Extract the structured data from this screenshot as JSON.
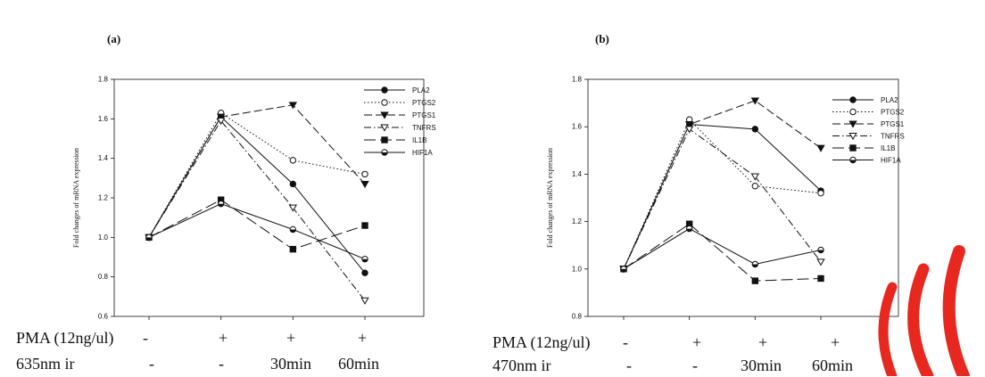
{
  "panels": [
    {
      "label": "(a)",
      "condition_rows": [
        {
          "label": "PMA (12ng/ul)",
          "cells": [
            "-",
            "+",
            "+",
            "+"
          ]
        },
        {
          "label": "635nm ir",
          "cells": [
            "-",
            "-",
            "30min",
            "60min"
          ]
        }
      ]
    },
    {
      "label": "(b)",
      "condition_rows": [
        {
          "label": "PMA (12ng/ul)",
          "cells": [
            "-",
            "+",
            "+",
            "+"
          ]
        },
        {
          "label": "470nm ir",
          "cells": [
            "-",
            "-",
            "30min",
            "60min"
          ]
        }
      ]
    }
  ],
  "chart_data": [
    {
      "type": "line",
      "panel": "(a)",
      "xlabel": "",
      "ylabel": "Fold changes of mRNA expression",
      "categories": [
        "1",
        "2",
        "3",
        "4"
      ],
      "ylim": [
        0.6,
        1.8
      ],
      "yticks": [
        "0.6",
        "0.8",
        "1.0",
        "1.2",
        "1.4",
        "1.6",
        "1.8"
      ],
      "grid": false,
      "legend_position": "top-right",
      "series": [
        {
          "name": "PLA2",
          "values": [
            1.0,
            1.61,
            1.27,
            0.82
          ],
          "marker": "circle-filled",
          "dash": "solid"
        },
        {
          "name": "PTGS2",
          "values": [
            1.0,
            1.63,
            1.39,
            1.32
          ],
          "marker": "circle-open",
          "dash": "dotted"
        },
        {
          "name": "PTGS1",
          "values": [
            1.0,
            1.61,
            1.67,
            1.27
          ],
          "marker": "triangle-filled",
          "dash": "dashed"
        },
        {
          "name": "TNFRS",
          "values": [
            1.0,
            1.59,
            1.15,
            0.68
          ],
          "marker": "triangle-open",
          "dash": "dashdot"
        },
        {
          "name": "IL1B",
          "values": [
            1.0,
            1.19,
            0.94,
            1.06
          ],
          "marker": "square-filled",
          "dash": "longdash"
        },
        {
          "name": "HIF1A",
          "values": [
            1.0,
            1.17,
            1.04,
            0.89
          ],
          "marker": "circle-half",
          "dash": "solid"
        }
      ]
    },
    {
      "type": "line",
      "panel": "(b)",
      "xlabel": "",
      "ylabel": "Fold changes of mRNA expression",
      "categories": [
        "1",
        "2",
        "3",
        "4"
      ],
      "ylim": [
        0.8,
        1.8
      ],
      "yticks": [
        "0.8",
        "1.0",
        "1.2",
        "1.4",
        "1.6",
        "1.8"
      ],
      "grid": false,
      "legend_position": "top-right",
      "series": [
        {
          "name": "PLA2",
          "values": [
            1.0,
            1.61,
            1.59,
            1.33
          ],
          "marker": "circle-filled",
          "dash": "solid"
        },
        {
          "name": "PTGS2",
          "values": [
            1.0,
            1.63,
            1.35,
            1.32
          ],
          "marker": "circle-open",
          "dash": "dotted"
        },
        {
          "name": "PTGS1",
          "values": [
            1.0,
            1.61,
            1.71,
            1.51
          ],
          "marker": "triangle-filled",
          "dash": "dashed"
        },
        {
          "name": "TNFRS",
          "values": [
            1.0,
            1.59,
            1.39,
            1.03
          ],
          "marker": "triangle-open",
          "dash": "dashdot"
        },
        {
          "name": "IL1B",
          "values": [
            1.0,
            1.19,
            0.95,
            0.96
          ],
          "marker": "square-filled",
          "dash": "longdash"
        },
        {
          "name": "HIF1A",
          "values": [
            1.0,
            1.17,
            1.02,
            1.08
          ],
          "marker": "circle-half",
          "dash": "solid"
        }
      ]
    }
  ],
  "watermark": {
    "color": "#e8281e"
  }
}
